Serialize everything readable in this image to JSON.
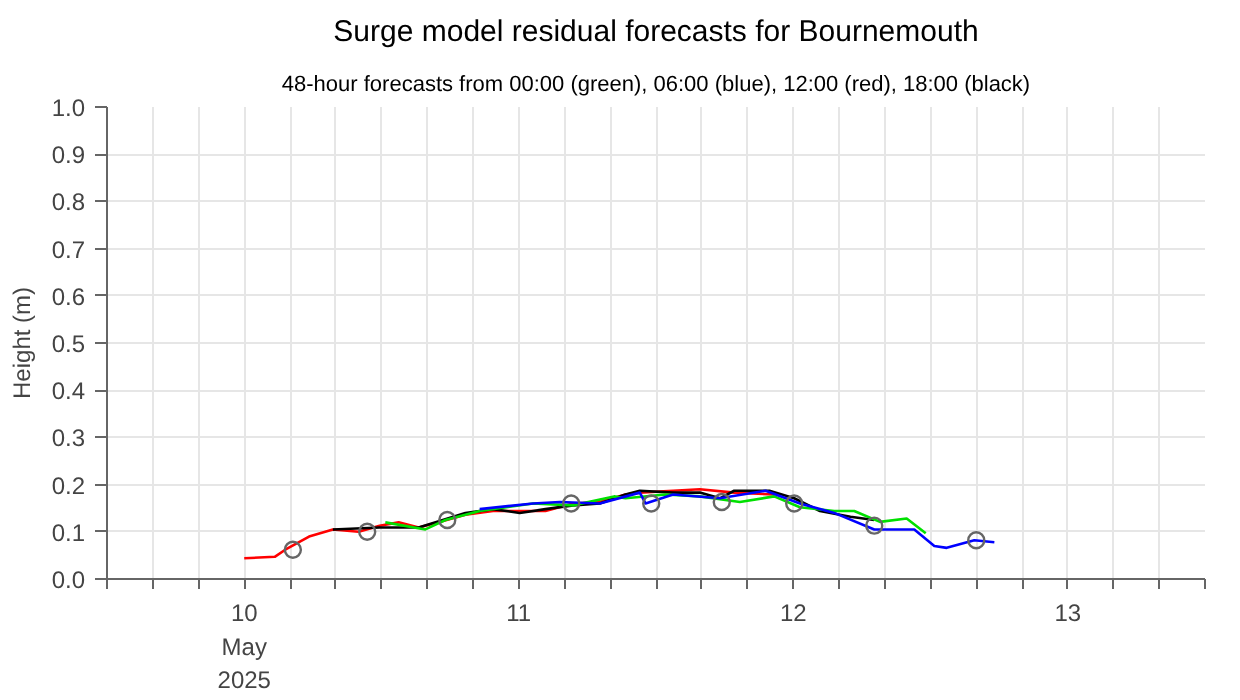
{
  "chart_data": {
    "type": "line",
    "title": "Surge model residual forecasts for Bournemouth",
    "subtitle": "48-hour forecasts from 00:00 (green), 06:00 (blue), 12:00 (red), 18:00 (black)",
    "ylabel": "Height (m)",
    "xlim": [
      "2025-05-09T12:00",
      "2025-05-13T12:00"
    ],
    "xticks": [
      {
        "value": "2025-05-09T12:00",
        "label": null
      },
      {
        "value": "2025-05-09T16:00",
        "label": null
      },
      {
        "value": "2025-05-09T20:00",
        "label": null
      },
      {
        "value": "2025-05-10T00:00",
        "label": "10\nMay\n2025"
      },
      {
        "value": "2025-05-10T04:00",
        "label": null
      },
      {
        "value": "2025-05-10T08:00",
        "label": null
      },
      {
        "value": "2025-05-10T12:00",
        "label": null
      },
      {
        "value": "2025-05-10T16:00",
        "label": null
      },
      {
        "value": "2025-05-10T20:00",
        "label": null
      },
      {
        "value": "2025-05-11T00:00",
        "label": "11"
      },
      {
        "value": "2025-05-11T04:00",
        "label": null
      },
      {
        "value": "2025-05-11T08:00",
        "label": null
      },
      {
        "value": "2025-05-11T12:00",
        "label": null
      },
      {
        "value": "2025-05-11T16:00",
        "label": null
      },
      {
        "value": "2025-05-11T20:00",
        "label": null
      },
      {
        "value": "2025-05-12T00:00",
        "label": "12"
      },
      {
        "value": "2025-05-12T04:00",
        "label": null
      },
      {
        "value": "2025-05-12T08:00",
        "label": null
      },
      {
        "value": "2025-05-12T12:00",
        "label": null
      },
      {
        "value": "2025-05-12T16:00",
        "label": null
      },
      {
        "value": "2025-05-12T20:00",
        "label": null
      },
      {
        "value": "2025-05-13T00:00",
        "label": "13"
      },
      {
        "value": "2025-05-13T04:00",
        "label": null
      },
      {
        "value": "2025-05-13T08:00",
        "label": null
      },
      {
        "value": "2025-05-13T12:00",
        "label": null
      }
    ],
    "ylim": [
      0,
      1
    ],
    "yticks": [
      {
        "value": 0,
        "label": "0.0"
      },
      {
        "value": 0.1,
        "label": "0.1"
      },
      {
        "value": 0.2,
        "label": "0.2"
      },
      {
        "value": 0.3,
        "label": "0.3"
      },
      {
        "value": 0.4,
        "label": "0.4"
      },
      {
        "value": 0.5,
        "label": "0.5"
      },
      {
        "value": 0.6,
        "label": "0.6"
      },
      {
        "value": 0.7,
        "label": "0.7"
      },
      {
        "value": 0.8,
        "label": "0.8"
      },
      {
        "value": 0.9,
        "label": "0.9"
      },
      {
        "value": 1,
        "label": "1.0"
      }
    ],
    "grid": true,
    "marker": "none",
    "line_style": "solid",
    "series": [
      {
        "color": "#ff0000",
        "x": [
          "2025-05-10T00:00",
          "2025-05-10T02:40",
          "2025-05-10T03:35",
          "2025-05-10T05:40",
          "2025-05-10T07:45",
          "2025-05-10T10:00",
          "2025-05-10T11:50",
          "2025-05-10T13:30",
          "2025-05-10T15:15",
          "2025-05-10T17:00",
          "2025-05-10T19:20",
          "2025-05-10T21:45",
          "2025-05-11T00:05",
          "2025-05-11T02:20",
          "2025-05-11T04:45",
          "2025-05-11T07:05",
          "2025-05-11T09:20",
          "2025-05-11T10:35",
          "2025-05-11T13:30",
          "2025-05-11T15:50",
          "2025-05-11T18:50",
          "2025-05-11T22:20"
        ],
        "values": [
          0.044,
          0.047,
          0.062,
          0.09,
          0.105,
          0.1,
          0.113,
          0.12,
          0.109,
          0.12,
          0.136,
          0.144,
          0.144,
          0.144,
          0.16,
          0.163,
          0.179,
          0.183,
          0.187,
          0.19,
          0.183,
          0.179
        ]
      },
      {
        "color": "#000000",
        "x": [
          "2025-05-10T07:45",
          "2025-05-10T11:50",
          "2025-05-10T15:15",
          "2025-05-10T19:20",
          "2025-05-10T21:45",
          "2025-05-11T00:05",
          "2025-05-11T02:20",
          "2025-05-11T04:45",
          "2025-05-11T07:05",
          "2025-05-11T09:20",
          "2025-05-11T10:35",
          "2025-05-11T13:30",
          "2025-05-11T15:50",
          "2025-05-11T17:35",
          "2025-05-11T18:50",
          "2025-05-11T21:55",
          "2025-05-12T00:05",
          "2025-05-12T02:20",
          "2025-05-12T05:00",
          "2025-05-12T07:05"
        ],
        "values": [
          0.105,
          0.109,
          0.109,
          0.14,
          0.148,
          0.14,
          0.148,
          0.156,
          0.16,
          0.179,
          0.187,
          0.183,
          0.183,
          0.171,
          0.187,
          0.187,
          0.171,
          0.144,
          0.132,
          0.125
        ]
      },
      {
        "color": "#00e000",
        "x": [
          "2025-05-10T12:20",
          "2025-05-10T15:50",
          "2025-05-10T17:35",
          "2025-05-10T20:35",
          "2025-05-11T01:15",
          "2025-05-11T04:45",
          "2025-05-11T08:20",
          "2025-05-11T09:20",
          "2025-05-11T12:50",
          "2025-05-11T15:50",
          "2025-05-11T19:20",
          "2025-05-11T22:20",
          "2025-05-12T00:35",
          "2025-05-12T03:35",
          "2025-05-12T05:20",
          "2025-05-12T07:35",
          "2025-05-12T09:55",
          "2025-05-12T11:35"
        ],
        "values": [
          0.12,
          0.105,
          0.125,
          0.144,
          0.16,
          0.156,
          0.175,
          0.171,
          0.179,
          0.175,
          0.163,
          0.175,
          0.152,
          0.144,
          0.144,
          0.121,
          0.128,
          0.097
        ]
      },
      {
        "color": "#0000ff",
        "x": [
          "2025-05-10T20:35",
          "2025-05-11T01:15",
          "2025-05-11T03:35",
          "2025-05-11T07:05",
          "2025-05-11T10:35",
          "2025-05-11T11:05",
          "2025-05-11T13:30",
          "2025-05-11T17:35",
          "2025-05-11T21:35",
          "2025-05-12T00:35",
          "2025-05-12T03:35",
          "2025-05-12T07:05",
          "2025-05-12T10:35",
          "2025-05-12T12:20",
          "2025-05-12T13:25",
          "2025-05-12T15:50",
          "2025-05-12T17:35"
        ],
        "values": [
          0.148,
          0.16,
          0.163,
          0.16,
          0.183,
          0.16,
          0.179,
          0.171,
          0.187,
          0.16,
          0.14,
          0.105,
          0.105,
          0.07,
          0.066,
          0.082,
          0.078
        ]
      },
      {
        "type": "scatter",
        "marker": "circle",
        "color": "#666666",
        "x": [
          "2025-05-10T04:15",
          "2025-05-10T10:45",
          "2025-05-10T17:45",
          "2025-05-11T04:35",
          "2025-05-11T11:35",
          "2025-05-11T17:45",
          "2025-05-12T00:05",
          "2025-05-12T07:05",
          "2025-05-12T16:00"
        ],
        "values": [
          0.062,
          0.1,
          0.125,
          0.16,
          0.16,
          0.163,
          0.16,
          0.113,
          0.082
        ]
      }
    ]
  }
}
